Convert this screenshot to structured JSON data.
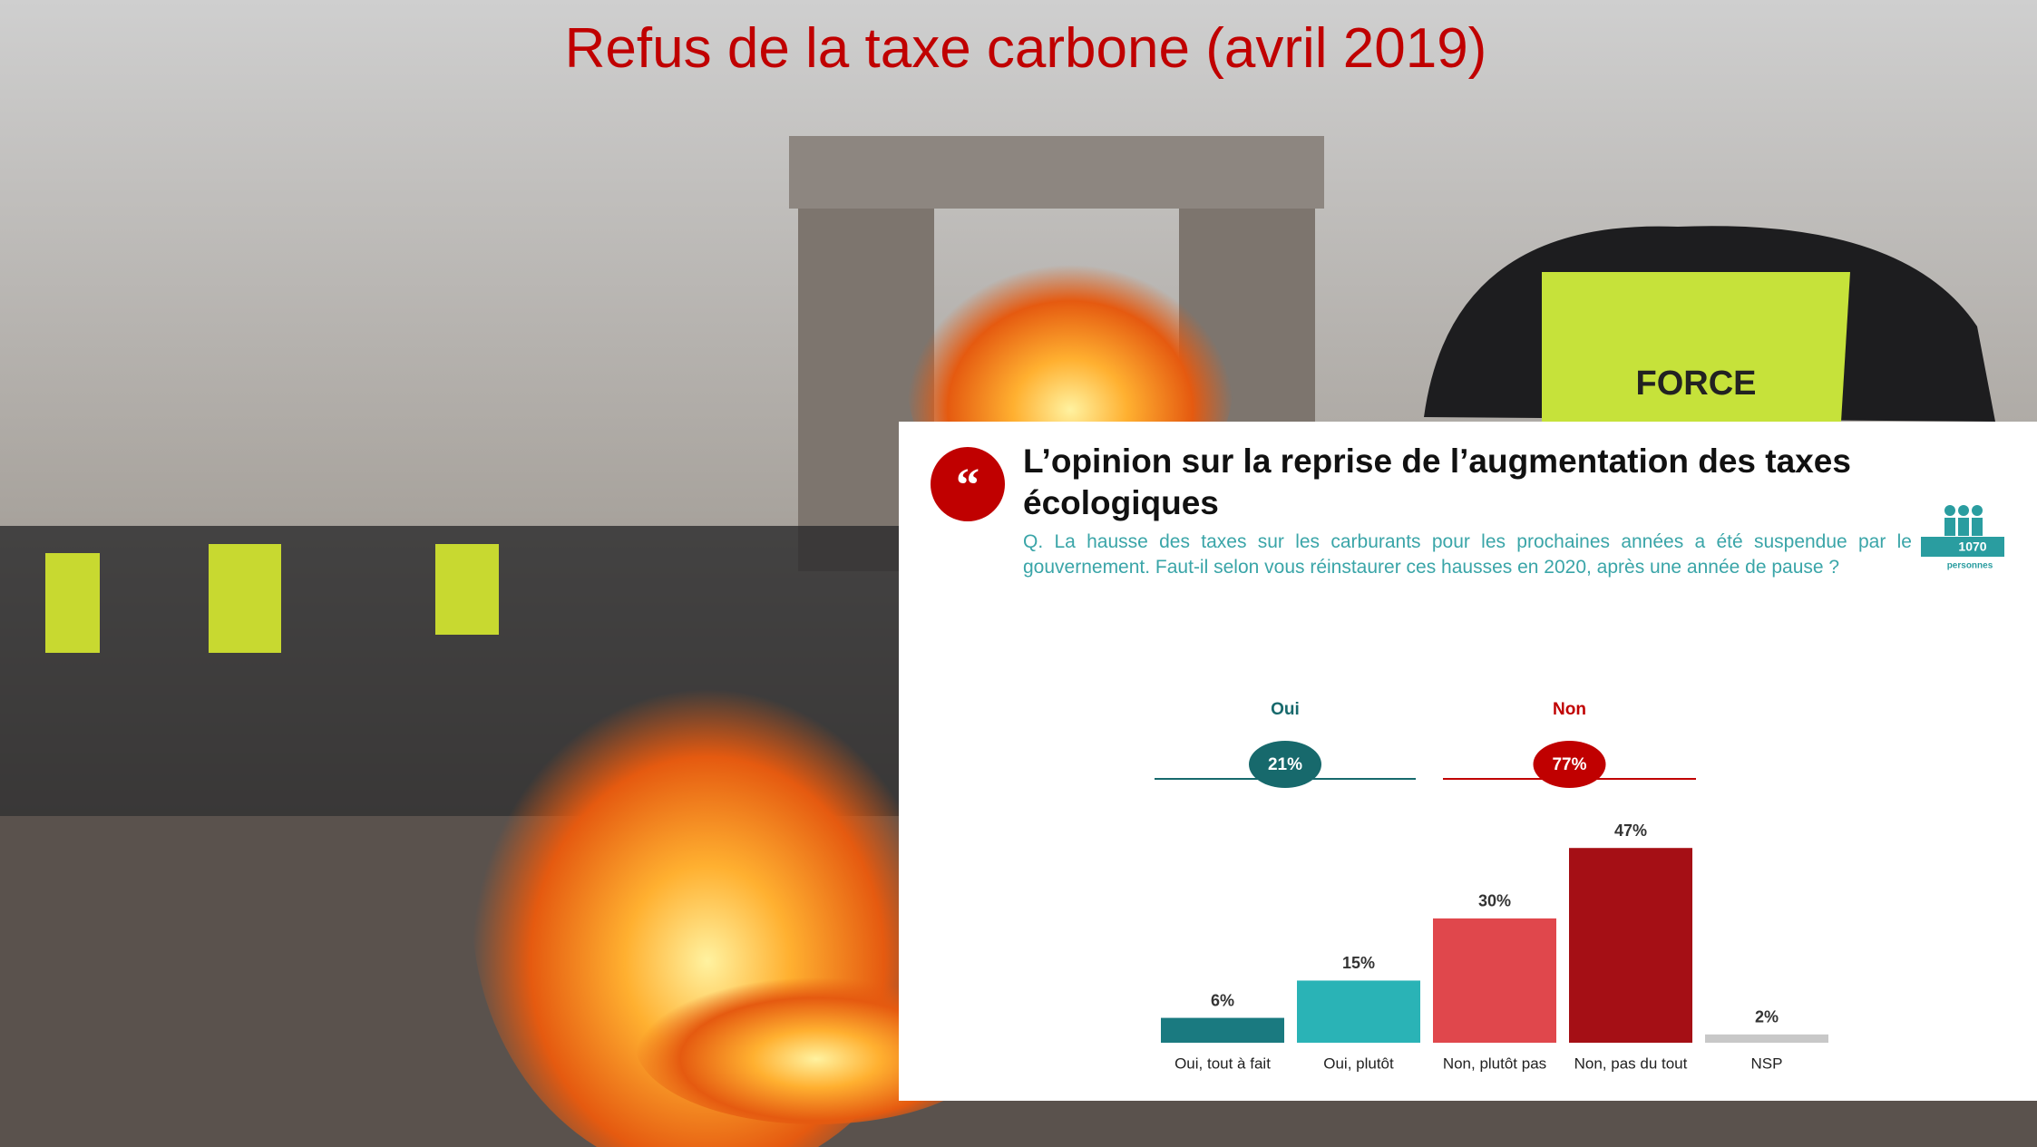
{
  "slide": {
    "title": "Refus de la taxe carbone (avril 2019)",
    "photo_text": "FORCE"
  },
  "chart_data": {
    "type": "bar",
    "title": "L’opinion sur la reprise de l’augmentation des taxes écologiques",
    "subtitle": "Q. La hausse des taxes sur les carburants pour les prochaines années a été suspendue par le gouvernement. Faut-il selon vous réinstaurer ces hausses en 2020, après une année de pause ?",
    "sample": {
      "count": 1070,
      "label": "personnes"
    },
    "groups": [
      {
        "name": "Oui",
        "value": 21,
        "value_label": "21%",
        "color": "#17696c"
      },
      {
        "name": "Non",
        "value": 77,
        "value_label": "77%",
        "color": "#c00000"
      }
    ],
    "categories": [
      "Oui, tout à fait",
      "Oui, plutôt",
      "Non, plutôt pas",
      "Non, pas du tout",
      "NSP"
    ],
    "values": [
      6,
      15,
      30,
      47,
      2
    ],
    "value_labels": [
      "6%",
      "15%",
      "30%",
      "47%",
      "2%"
    ],
    "colors": [
      "#1a7a80",
      "#2ab3b6",
      "#e0474c",
      "#a50f15",
      "#c8c8c8"
    ]
  }
}
